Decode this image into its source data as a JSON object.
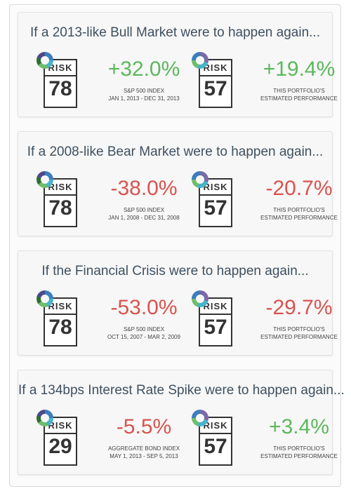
{
  "scenarios": [
    {
      "title": "If a 2013-like Bull Market were to happen again...",
      "benchmark": {
        "risk_label": "RISK",
        "risk_score": "78",
        "value": "+32.0%",
        "trend": "pos",
        "line1": "S&P 500 INDEX",
        "line2": "JAN 1, 2013 - DEC 31, 2013"
      },
      "portfolio": {
        "risk_label": "RISK",
        "risk_score": "57",
        "value": "+19.4%",
        "trend": "pos",
        "line1": "THIS PORTFOLIO'S",
        "line2": "ESTIMATED PERFORMANCE"
      }
    },
    {
      "title": "If a 2008-like Bear Market were to happen again...",
      "benchmark": {
        "risk_label": "RISK",
        "risk_score": "78",
        "value": "-38.0%",
        "trend": "neg",
        "line1": "S&P 500 INDEX",
        "line2": "JAN 1, 2008 - DEC 31, 2008"
      },
      "portfolio": {
        "risk_label": "RISK",
        "risk_score": "57",
        "value": "-20.7%",
        "trend": "neg",
        "line1": "THIS PORTFOLIO'S",
        "line2": "ESTIMATED PERFORMANCE"
      }
    },
    {
      "title": "If the Financial Crisis were to happen again...",
      "benchmark": {
        "risk_label": "RISK",
        "risk_score": "78",
        "value": "-53.0%",
        "trend": "neg",
        "line1": "S&P 500 INDEX",
        "line2": "OCT 15, 2007 - MAR 2, 2009"
      },
      "portfolio": {
        "risk_label": "RISK",
        "risk_score": "57",
        "value": "-29.7%",
        "trend": "neg",
        "line1": "THIS PORTFOLIO'S",
        "line2": "ESTIMATED PERFORMANCE"
      }
    },
    {
      "title": "If a 134bps Interest Rate Spike were to happen again...",
      "benchmark": {
        "risk_label": "RISK",
        "risk_score": "29",
        "value": "-5.5%",
        "trend": "neg",
        "line1": "AGGREGATE BOND INDEX",
        "line2": "MAY 1, 2013 - SEP 5, 2013"
      },
      "portfolio": {
        "risk_label": "RISK",
        "risk_score": "57",
        "value": "+3.4%",
        "trend": "pos",
        "line1": "THIS PORTFOLIO'S",
        "line2": "ESTIMATED PERFORMANCE"
      }
    }
  ],
  "colors": {
    "positive": "#5cb85c",
    "negative": "#d9534f",
    "title": "#3e5061"
  }
}
